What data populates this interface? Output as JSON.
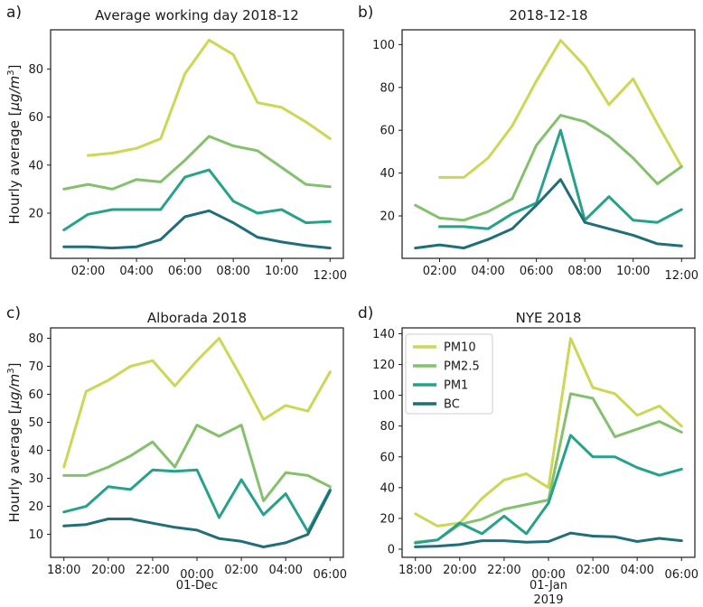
{
  "figure": {
    "ylabel_prefix": "Hourly average [",
    "ylabel_unit": "μg/m",
    "ylabel_sup": "3",
    "ylabel_close": "]"
  },
  "colors": {
    "pm10": "#ccd755",
    "pm25": "#85c06e",
    "pm1": "#27a28a",
    "bc": "#206e7a",
    "axis": "#1a1a1a",
    "legend_border": "#cccccc"
  },
  "chart_data": [
    {
      "panel_label": "a)",
      "type": "line",
      "title": "Average working day 2018-12",
      "ylabel": "Hourly average [μg/m³]",
      "xlim": [
        0.45,
        12.55
      ],
      "ylim": [
        1.2,
        96.3
      ],
      "grid": false,
      "yticks": [
        20,
        40,
        60,
        80
      ],
      "xticks": [
        {
          "v": 2,
          "label": "02:00"
        },
        {
          "v": 4,
          "label": "04:00"
        },
        {
          "v": 6,
          "label": "06:00"
        },
        {
          "v": 8,
          "label": "08:00"
        },
        {
          "v": 10,
          "label": "10:00"
        },
        {
          "v": 12,
          "label": "12:00",
          "dy": 5
        }
      ],
      "series": [
        {
          "name": "PM10",
          "color": "#ccd755",
          "x": [
            2,
            3,
            4,
            5,
            6,
            7,
            8,
            9,
            10,
            11,
            12
          ],
          "y": [
            44,
            45,
            47,
            51,
            78,
            92,
            86,
            66,
            64,
            58,
            51
          ]
        },
        {
          "name": "PM2.5",
          "color": "#85c06e",
          "x": [
            1,
            2,
            3,
            4,
            5,
            6,
            7,
            8,
            9,
            10,
            11,
            12
          ],
          "y": [
            30,
            32,
            30,
            34,
            33,
            42,
            52,
            48,
            46,
            39,
            32,
            31
          ]
        },
        {
          "name": "PM1",
          "color": "#27a28a",
          "x": [
            1,
            2,
            3,
            4,
            5,
            6,
            7,
            8,
            9,
            10,
            11,
            12
          ],
          "y": [
            13,
            19.5,
            21.5,
            21.5,
            21.5,
            35,
            38,
            25,
            20,
            21.5,
            16,
            16.5
          ]
        },
        {
          "name": "BC",
          "color": "#206e7a",
          "x": [
            1,
            2,
            3,
            4,
            5,
            6,
            7,
            8,
            9,
            10,
            11,
            12
          ],
          "y": [
            6,
            6,
            5.5,
            6,
            9,
            18.5,
            21,
            16,
            10,
            8,
            6.5,
            5.5
          ]
        }
      ]
    },
    {
      "panel_label": "b)",
      "type": "line",
      "title": "2018-12-18",
      "ylabel": "",
      "xlim": [
        0.45,
        12.55
      ],
      "ylim": [
        0.2,
        106.9
      ],
      "grid": false,
      "yticks": [
        20,
        40,
        60,
        80,
        100
      ],
      "xticks": [
        {
          "v": 2,
          "label": "02:00"
        },
        {
          "v": 4,
          "label": "04:00"
        },
        {
          "v": 6,
          "label": "06:00"
        },
        {
          "v": 8,
          "label": "08:00"
        },
        {
          "v": 10,
          "label": "10:00"
        },
        {
          "v": 12,
          "label": "12:00",
          "dy": 5
        }
      ],
      "series": [
        {
          "name": "PM10",
          "color": "#ccd755",
          "x": [
            2,
            3,
            4,
            5,
            6,
            7,
            8,
            9,
            10,
            11,
            12
          ],
          "y": [
            38,
            38,
            47,
            62,
            83,
            102,
            90,
            72,
            84,
            63,
            43
          ]
        },
        {
          "name": "PM2.5",
          "color": "#85c06e",
          "x": [
            1,
            2,
            3,
            4,
            5,
            6,
            7,
            8,
            9,
            10,
            11,
            12
          ],
          "y": [
            25,
            19,
            18,
            22,
            28,
            53,
            67,
            64,
            57,
            47,
            35,
            43
          ]
        },
        {
          "name": "PM1",
          "color": "#27a28a",
          "x": [
            2,
            3,
            4,
            5,
            6,
            7,
            8,
            9,
            10,
            11,
            12
          ],
          "y": [
            15,
            15,
            14,
            21,
            26,
            60,
            18,
            29,
            18,
            17,
            23
          ]
        },
        {
          "name": "BC",
          "color": "#206e7a",
          "x": [
            1,
            2,
            3,
            4,
            5,
            6,
            7,
            8,
            9,
            10,
            11,
            12
          ],
          "y": [
            5,
            6.5,
            5,
            9,
            14,
            25,
            37,
            17,
            14,
            11,
            7,
            6
          ]
        }
      ]
    },
    {
      "panel_label": "c)",
      "type": "line",
      "title": "Alborada 2018",
      "ylabel": "Hourly average [μg/m³]",
      "xlim": [
        17.4,
        30.6
      ],
      "ylim": [
        1.8,
        83.7
      ],
      "grid": false,
      "date_label": [
        "01-Dec"
      ],
      "yticks": [
        10,
        20,
        30,
        40,
        50,
        60,
        70,
        80
      ],
      "xticks": [
        {
          "v": 18,
          "label": "18:00"
        },
        {
          "v": 20,
          "label": "20:00"
        },
        {
          "v": 22,
          "label": "22:00"
        },
        {
          "v": 24,
          "label": "00:00",
          "dy": 5
        },
        {
          "v": 26,
          "label": "02:00"
        },
        {
          "v": 28,
          "label": "04:00"
        },
        {
          "v": 30,
          "label": "06:00",
          "dy": 5
        }
      ],
      "series": [
        {
          "name": "PM10",
          "color": "#ccd755",
          "x": [
            18,
            19,
            20,
            21,
            22,
            23,
            24,
            25,
            26,
            27,
            28,
            29,
            30
          ],
          "y": [
            34,
            61,
            65,
            70,
            72,
            63,
            72,
            80,
            66,
            51,
            56,
            54,
            68
          ]
        },
        {
          "name": "PM2.5",
          "color": "#85c06e",
          "x": [
            18,
            19,
            20,
            21,
            22,
            23,
            24,
            25,
            26,
            27,
            28,
            29,
            30
          ],
          "y": [
            31,
            31,
            34,
            38,
            43,
            34,
            49,
            45,
            49,
            22,
            32,
            31,
            27
          ]
        },
        {
          "name": "PM1",
          "color": "#27a28a",
          "x": [
            18,
            19,
            20,
            21,
            22,
            23,
            24,
            25,
            26,
            27,
            28,
            29,
            30
          ],
          "y": [
            18,
            20,
            27,
            26,
            33,
            32.5,
            33,
            16,
            29.5,
            17,
            24.5,
            11,
            26
          ]
        },
        {
          "name": "BC",
          "color": "#206e7a",
          "x": [
            18,
            19,
            20,
            21,
            22,
            23,
            24,
            25,
            26,
            27,
            28,
            29,
            30
          ],
          "y": [
            13,
            13.5,
            15.5,
            15.5,
            14,
            12.5,
            11.5,
            8.5,
            7.5,
            5.5,
            7,
            10,
            25.5
          ]
        }
      ]
    },
    {
      "panel_label": "d)",
      "type": "line",
      "title": "NYE 2018",
      "ylabel": "",
      "xlim": [
        17.4,
        30.6
      ],
      "ylim": [
        -5.3,
        143.8
      ],
      "grid": false,
      "date_label": [
        "01-Jan",
        "2019"
      ],
      "legend": {
        "position": "upper-left",
        "entries": [
          "PM10",
          "PM2.5",
          "PM1",
          "BC"
        ]
      },
      "yticks": [
        0,
        20,
        40,
        60,
        80,
        100,
        120,
        140
      ],
      "xticks": [
        {
          "v": 18,
          "label": "18:00"
        },
        {
          "v": 20,
          "label": "20:00"
        },
        {
          "v": 22,
          "label": "22:00"
        },
        {
          "v": 24,
          "label": "00:00",
          "dy": 5
        },
        {
          "v": 26,
          "label": "02:00"
        },
        {
          "v": 28,
          "label": "04:00"
        },
        {
          "v": 30,
          "label": "06:00",
          "dy": 5
        }
      ],
      "series": [
        {
          "name": "PM10",
          "color": "#ccd755",
          "x": [
            18,
            19,
            20,
            21,
            22,
            23,
            24,
            25,
            26,
            27,
            28,
            29,
            30
          ],
          "y": [
            23,
            15,
            17,
            33,
            45,
            49,
            40,
            137,
            105,
            101,
            87,
            93,
            80
          ]
        },
        {
          "name": "PM2.5",
          "color": "#85c06e",
          "x": [
            18,
            19,
            20,
            21,
            22,
            23,
            24,
            25,
            26,
            27,
            28,
            29,
            30
          ],
          "y": [
            4.5,
            6,
            16,
            19.5,
            26,
            29,
            32,
            101,
            98,
            73,
            78,
            83,
            76
          ]
        },
        {
          "name": "PM1",
          "color": "#27a28a",
          "x": [
            18,
            19,
            20,
            21,
            22,
            23,
            24,
            25,
            26,
            27,
            28,
            29,
            30
          ],
          "y": [
            4,
            6,
            17,
            10,
            21.5,
            10,
            30,
            74,
            60,
            60,
            53,
            48,
            52
          ]
        },
        {
          "name": "BC",
          "color": "#206e7a",
          "x": [
            18,
            19,
            20,
            21,
            22,
            23,
            24,
            25,
            26,
            27,
            28,
            29,
            30
          ],
          "y": [
            1.5,
            2,
            3,
            5.5,
            5.5,
            4.5,
            5,
            10.5,
            8.5,
            8,
            5,
            7,
            5.5
          ]
        }
      ]
    }
  ]
}
